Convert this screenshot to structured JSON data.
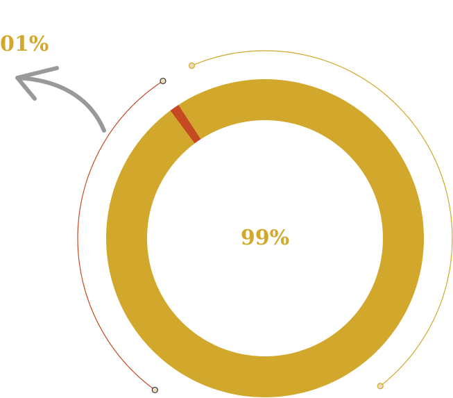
{
  "chart_data": {
    "type": "pie",
    "slices": [
      {
        "label": "99%",
        "value": 99,
        "color": "#d1a82b"
      },
      {
        "label": "01%",
        "value": 1,
        "color": "#c54a22"
      }
    ],
    "center_label": "99%",
    "callout_label": "01%"
  },
  "colors": {
    "major": "#d1a82b",
    "minor": "#c54a22",
    "arrow": "#999999",
    "dot_fill": "#ecdcb9",
    "dot_stroke": "#333333"
  }
}
